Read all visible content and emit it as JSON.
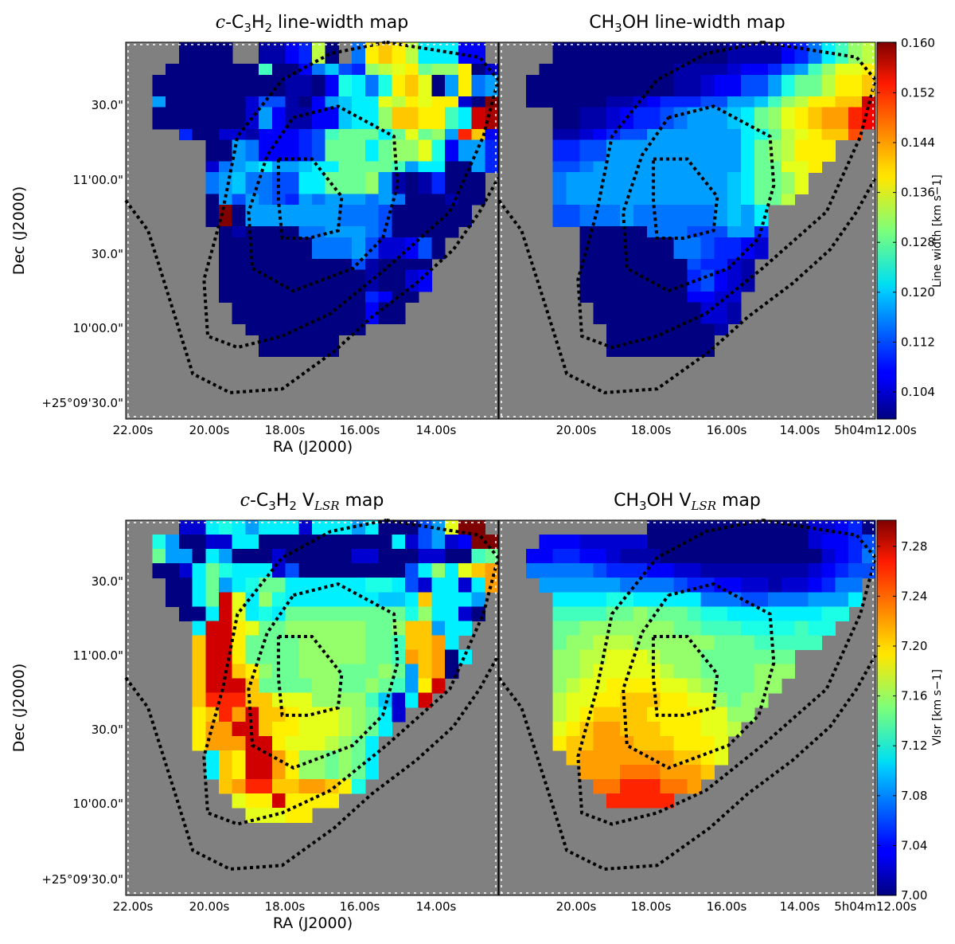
{
  "chart_data": [
    {
      "type": "heatmap",
      "id": "lw_c3h2",
      "title": "c-C3H2 line-width map",
      "title_parts": {
        "it": "c",
        "pre": "-C",
        "sub1": "3",
        "mid": "H",
        "sub2": "2",
        "post": " line-width map"
      },
      "xlabel": "RA (J2000)",
      "ylabel": "Dec (J2000)",
      "x_tick_labels": [
        "22.00s",
        "20.00s",
        "18.00s",
        "16.00s",
        "14.00s"
      ],
      "y_tick_labels": [
        "30.0\"",
        "11'00.0\"",
        "30.0\"",
        "10'00.0\"",
        "+25°09'30.0\""
      ],
      "value_range": [
        0.1,
        0.16
      ],
      "grid": false,
      "rows": [
        "....aaaa..bbdeo+.gqrqojjjdd.",
        "....aaaa..bbdeo+.gqrqojjjdd.",
        "...aaaaaaalaadgifenopqmnnqac",
        "..aaaaaaaaaabbadkjgkqrpahqgh",
        "..aaaaaaaaaabbadkjgkqrpahqgh",
        "..haaaaaacffbadhijjpoqpqqcaz",
        "..aaaaaaachdbbddijjnrrqqljxy",
        "..aaaaaaachdbbddijjnrrqqljxy",
        "....eaaccbdddeflmmmjmpmnhvrd",
        "......aahgdddefmmmjmnnpkdhhe",
        "......aahgdddefmmmjmnnpkdhhe",
        "......cghijhhijjmmmmlhjjaahe",
        "......ghiggffjjmmmnhbabeaaa.",
        "......ghiggffjjmmmnhbabeaaa.",
        "......ahfhgfehghhhghgaaabaa.",
        "......azahhhhhhhgggfaaaaaa..",
        "......azahhhhhhhgggfaaaaaa..",
        ".......abaaaagghhhgfaaaaa...",
        ".......aaaaaaaggghfccdfa....",
        ".......aaaaaaaggghfccdfa....",
        ".......aaaaaaaaaafbaaaa.....",
        ".......aaaaaaaaaaabaacd.....",
        ".......aaaaaaaaaaabaacd.....",
        ".......aaaaaaaaaaaedaa......",
        "........aaaaaaaaaadaa.......",
        "........aaaaaaaaaadaa.......",
        ".........aaaaaaaaa..........",
        "..........aaaaaa............",
        "..........aaaaaa............",
        ".............................",
        ".............................",
        "............................."
      ]
    },
    {
      "type": "heatmap",
      "id": "lw_ch3oh",
      "title": "CH3OH line-width map",
      "title_parts": {
        "pre": "CH",
        "sub1": "3",
        "post": "OH line-width map"
      },
      "xlabel": "",
      "ylabel": "",
      "x_tick_labels": [
        "20.00s",
        "18.00s",
        "16.00s",
        "14.00s",
        "5h04m12.00s"
      ],
      "value_range": [
        0.1,
        0.16
      ],
      "colorbar": {
        "label": "Line width [km s−1]",
        "ticks": [
          "0.104",
          "0.112",
          "0.120",
          "0.128",
          "0.136",
          "0.144",
          "0.152",
          "0.160"
        ]
      },
      "grid": false,
      "rows": [
        "....aaaaaaaaaaaaabbbbdegjlno",
        "....aaaaaaaaaaaaabbbbdegjlno",
        "...aaaaaaaaaabbbbcddeghlnppq",
        "..aaaaaaaaaaabbcddffhkmmoqqr",
        "..aaaaaaaaaaabbcddffhkmmoqqr",
        "..aaaaaabbcdeeeffhhilnoqqrrx",
        "....aabbcdeefghhhijmnpqrssvw",
        "....aabbcdeefghhhijmnpqrssvw",
        "....bbcdeffhhhhhhhjkmopqrru.",
        "....eeffhhhhhhhhhhjmnoqqq...",
        "....eeffhhhhhhhhhhjmnoqqq...",
        "....ffghhhhhhhhhhhjmmppq....",
        "....ghhhhhhhhhhhhijmmnp.....",
        "....ghhhhhhhhhhhhijmmnp.....",
        "....ghhhhhhhhhhhhijmmo......",
        "....ffggghgggggghihj........",
        "....ffggghgggggghihj........",
        "......aaaaagggfffhhe........",
        "......aaaaaaaggfeedc........",
        "......aaaaaaaggfeedc........",
        "......aaaaaaaafeecb.........",
        "......aaaaaaaaefdcb.........",
        "......aaaaaaaaefdcb.........",
        "......aaaaaaaaddcc..........",
        ".......aaaaaaaaccb..........",
        ".......aaaaaaaaccb..........",
        "........aaaaaaaab...........",
        "........aaaaaaaa............",
        "........aaaaaaaa............",
        ".............................",
        ".............................",
        "............................."
      ]
    },
    {
      "type": "heatmap",
      "id": "v_c3h2",
      "title": "c-C3H2 VLSR map",
      "title_parts": {
        "it": "c",
        "pre": "-C",
        "sub1": "3",
        "mid": "H",
        "sub2": "2",
        "post": " V",
        "sub3": "LSR",
        "post2": " map"
      },
      "xlabel": "RA (J2000)",
      "ylabel": "Dec (J2000)",
      "x_tick_labels": [
        "22.00s",
        "20.00s",
        "18.00s",
        "16.00s",
        "14.00s"
      ],
      "y_tick_labels": [
        "30.0\"",
        "11'00.0\"",
        "30.0\"",
        "10'00.0\"",
        "+25°09'30.0\""
      ],
      "value_range": [
        7.0,
        7.3
      ],
      "grid": false,
      "rows": [
        "....ccjkjhjjjcjjjhjaaafhpzz.",
        "..khaaccjjaaaaaaaaaajcfhcdzz",
        "..mhhajhaaacaaaaaccaaaccaalm",
        "..aacjmkjjjcfaaaaaaaafjnjprs",
        "...aajmhjkmmjjjjjjkkjfcjjcjs",
        "...aajmxpjnkjjjjjjjiijrjjjh.",
        "....aajxpjkjmmmmmmmmmknjjca.",
        ".....jxxqpmmnnnnnnmmnrrhjj..",
        ".....rxxqmmmmnnnnnmmlrrsj...",
        ".....rxxqmmmmnnnnnmmlsrsaj..",
        ".....rxxrqnmmnnnmmmnmhrsa...",
        ".....rxxxrmmmmnnmmnmlhqx....",
        ".....rvvvrrpppnnnnlicjx.....",
        ".....qrvsxrrqppponmjc.......",
        ".....qssxxrqqppponmj........",
        ".....qsssxxqppponmj.........",
        "......jrqxxsqnnmnmj.........",
        "......jrqxxsqnnmnmj.........",
        ".......rsvvrrssrqk..........",
        "........pqqxqqqq............",
        ".........pppqq..............",
        ".............................",
        ".............................",
        "............................."
      ]
    },
    {
      "type": "heatmap",
      "id": "v_ch3oh",
      "title": "CH3OH VLSR map",
      "title_parts": {
        "pre": "CH",
        "sub1": "3",
        "post": "OH V",
        "sub3": "LSR",
        "post2": " map"
      },
      "xlabel": "",
      "ylabel": "",
      "x_tick_labels": [
        "20.00s",
        "18.00s",
        "16.00s",
        "14.00s",
        "5h04m12.00s"
      ],
      "value_range": [
        7.0,
        7.3
      ],
      "colorbar": {
        "label": "Vlsr [km s−1]",
        "ticks": [
          "7.00",
          "7.04",
          "7.08",
          "7.12",
          "7.16",
          "7.20",
          "7.24",
          "7.28"
        ]
      },
      "grid": false,
      "rows": [
        "...........aaaaaaaaaaaaccdea",
        "...dddcccccaaaaaaaaaaaacddef",
        "..ddeeddcbbbaaaaaaaaaaaacdeg",
        "..gggggfeeeddccbbbbbbbbcdeff",
        "...hhhhhhggggfeeddccbccdegg.",
        "....jjjjkkjjjjjgggffggghhhj.",
        "....llllmmnmmmlkkjjjjjjjkk..",
        "....mmnnnnnnnmmlllkkkklkk...",
        "....mnnooonnnnnnmmmlllll....",
        "....nnooppponnnmmmmmmm......",
        "....nnoppppponnmmmmnnn......",
        "....noppqqqqpponmmmnn.......",
        "....oppqqrrrqqppnmnn........",
        "....opqrrrrqqqqppnn.........",
        "....pqrssrrrqqqppo..........",
        "....qrrsssrrrqqqp...........",
        ".....rsssssssrrqp...........",
        "......ssstttsssr............",
        ".......ttvvvtts.............",
        "........vvvvv...............",
        ".............................",
        ".............................",
        ".............................",
        "............................."
      ]
    }
  ]
}
